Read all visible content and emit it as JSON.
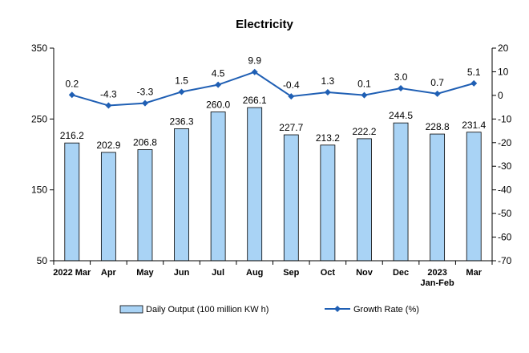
{
  "chart_data": {
    "type": "bar",
    "title": "Electricity",
    "categories": [
      "2022 Mar",
      "Apr",
      "May",
      "Jun",
      "Jul",
      "Aug",
      "Sep",
      "Oct",
      "Nov",
      "Dec",
      "2023 Jan-Feb",
      "Mar"
    ],
    "series": [
      {
        "name": "Daily Output (100 million KW h)",
        "type": "bar",
        "axis": "left",
        "color": "#a9d3f5",
        "values": [
          216.2,
          202.9,
          206.8,
          236.3,
          260.0,
          266.1,
          227.7,
          213.2,
          222.2,
          244.5,
          228.8,
          231.4
        ],
        "labels": [
          "216.2",
          "202.9",
          "206.8",
          "236.3",
          "260.0",
          "266.1",
          "227.7",
          "213.2",
          "222.2",
          "244.5",
          "228.8",
          "231.4"
        ]
      },
      {
        "name": "Growth Rate (%)",
        "type": "line",
        "axis": "right",
        "color": "#1f5fb4",
        "values": [
          0.2,
          -4.3,
          -3.3,
          1.5,
          4.5,
          9.9,
          -0.4,
          1.3,
          0.1,
          3.0,
          0.7,
          5.1
        ],
        "labels": [
          "0.2",
          "-4.3",
          "-3.3",
          "1.5",
          "4.5",
          "9.9",
          "-0.4",
          "1.3",
          "0.1",
          "3.0",
          "0.7",
          "5.1"
        ]
      }
    ],
    "y_left": {
      "min": 50,
      "max": 350,
      "ticks": [
        "50",
        "150",
        "250",
        "350"
      ]
    },
    "y_right": {
      "min": -70,
      "max": 20,
      "ticks": [
        "20",
        "10",
        "0",
        "-10",
        "-20",
        "-30",
        "-40",
        "-50",
        "-60",
        "-70"
      ]
    },
    "grid": false,
    "legend": "bottom"
  }
}
